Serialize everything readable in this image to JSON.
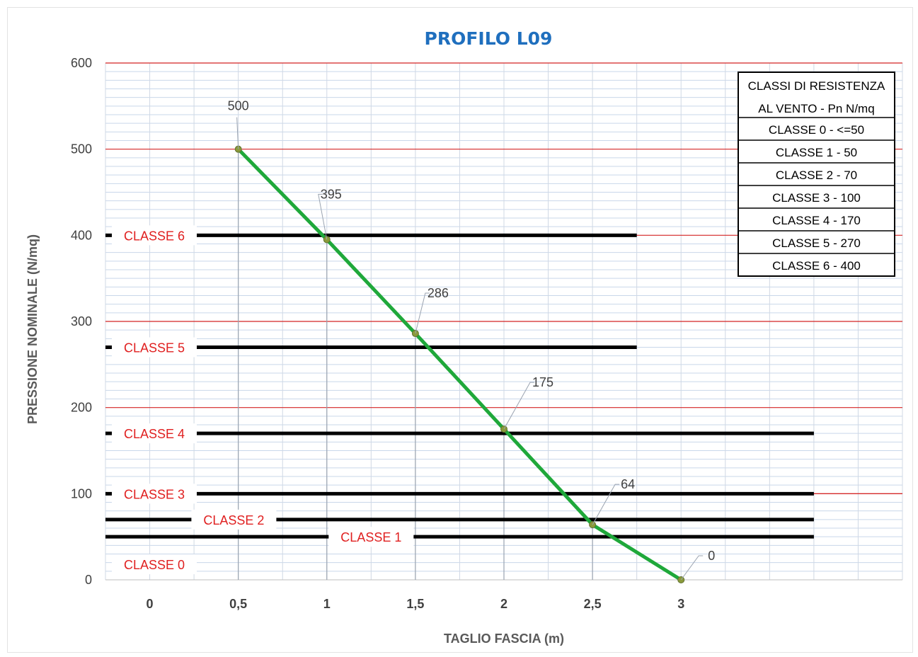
{
  "chart_data": {
    "type": "line",
    "title": "PROFILO L09",
    "xlabel": "TAGLIO FASCIA (m)",
    "ylabel": "PRESSIONE NOMINALE (N/mq)",
    "x_tick_labels": [
      "0",
      "0,5",
      "1",
      "1,5",
      "2",
      "2,5",
      "3"
    ],
    "x_tick_values": [
      0,
      0.5,
      1,
      1.5,
      2,
      2.5,
      3
    ],
    "y_tick_labels": [
      "0",
      "100",
      "200",
      "300",
      "400",
      "500",
      "600"
    ],
    "y_tick_values": [
      0,
      100,
      200,
      300,
      400,
      500,
      600
    ],
    "xlim": [
      -0.25,
      4.25
    ],
    "ylim": [
      0,
      600
    ],
    "grid": true,
    "series": [
      {
        "x": [
          0.5,
          1,
          1.5,
          2,
          2.5,
          3
        ],
        "y": [
          500,
          395,
          286,
          175,
          64,
          0
        ],
        "labels": [
          "500",
          "395",
          "286",
          "175",
          "64",
          "0"
        ],
        "color": "#1fa83a"
      }
    ],
    "class_lines": [
      {
        "label": "CLASSE 6",
        "value": 400,
        "x_end": 2.75
      },
      {
        "label": "CLASSE 5",
        "value": 270,
        "x_end": 2.75
      },
      {
        "label": "CLASSE 4",
        "value": 170,
        "x_end": 3.75
      },
      {
        "label": "CLASSE 3",
        "value": 100,
        "x_end": 3.75
      },
      {
        "label": "CLASSE 2",
        "value": 70,
        "x_end": 3.75
      },
      {
        "label": "CLASSE 1",
        "value": 50,
        "x_end": 3.75
      },
      {
        "label": "CLASSE 0",
        "value": 18,
        "x_end": null
      }
    ],
    "colors": {
      "series": "#1fa83a",
      "major_grid": "#d42424",
      "minor_grid": "#c9d7ea",
      "class_line": "#000000",
      "class_label": "#e02020",
      "title": "#1f6fbe"
    },
    "legend": {
      "position": "top-right",
      "title_lines": [
        "CLASSI DI RESISTENZA",
        "AL VENTO - Pn N/mq"
      ],
      "entries": [
        "CLASSE 0 - <=50",
        "CLASSE 1 - 50",
        "CLASSE 2 - 70",
        "CLASSE 3 - 100",
        "CLASSE 4 - 170",
        "CLASSE 5 - 270",
        "CLASSE 6 - 400"
      ]
    }
  }
}
